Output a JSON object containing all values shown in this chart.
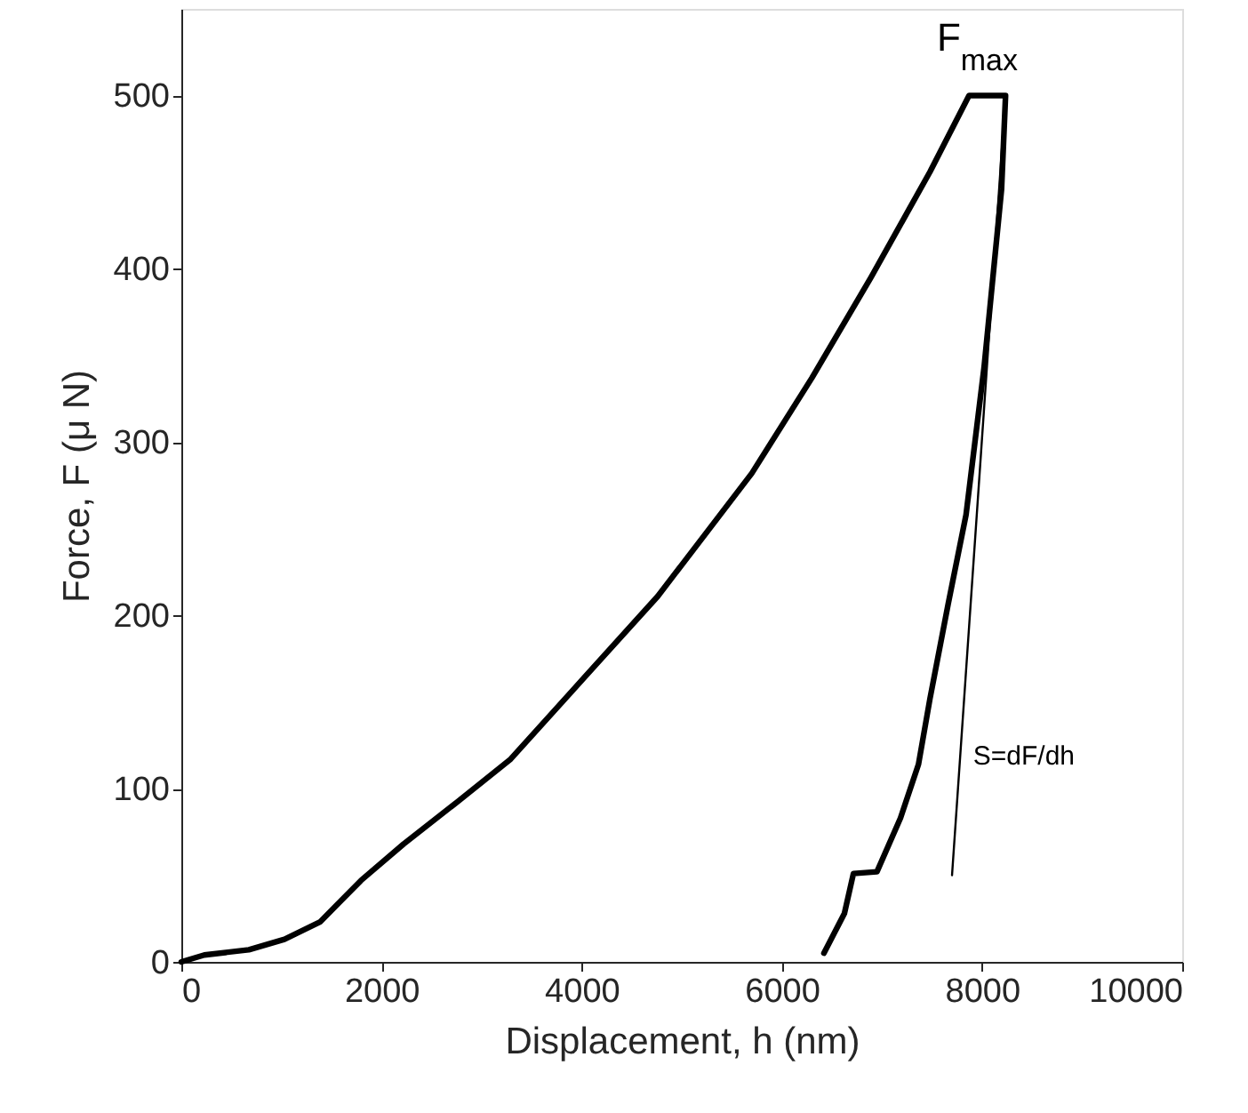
{
  "chart_data": {
    "type": "line",
    "xlabel": "Displacement, h (nm)",
    "ylabel": "Force, F (μ N)",
    "xlim": [
      0,
      10000
    ],
    "xticks": [
      0,
      2000,
      4000,
      6000,
      8000,
      10000
    ],
    "ylim": [
      0,
      550
    ],
    "yticks": [
      0,
      100,
      200,
      300,
      400,
      500
    ],
    "grid": false,
    "marker": "none",
    "line_style": "solid",
    "series": [
      {
        "color": "#000000",
        "x": [
          0,
          230,
          675,
          1030,
          1385,
          1795,
          2220,
          2750,
          3290,
          3930,
          4760,
          5700,
          6300,
          6890,
          7480,
          7870,
          8235,
          8195,
          8020,
          7840,
          7660,
          7480,
          7365,
          7185,
          6950,
          6715,
          6625,
          6420
        ],
        "values": [
          0,
          4,
          7,
          13,
          23,
          47,
          68,
          92,
          117,
          158,
          211,
          282,
          337,
          395,
          456,
          500,
          500,
          446,
          343,
          258,
          206,
          152,
          114,
          83,
          52,
          51,
          28,
          5
        ]
      },
      {
        "color": "#000000",
        "x": [
          7700,
          8235
        ],
        "values": [
          50,
          500
        ]
      }
    ],
    "annotations": [
      {
        "text": "F$_{max}$",
        "x": 8000,
        "y": 500
      },
      {
        "text": "S=dF/dh",
        "x": 7840,
        "y": 119
      }
    ]
  }
}
